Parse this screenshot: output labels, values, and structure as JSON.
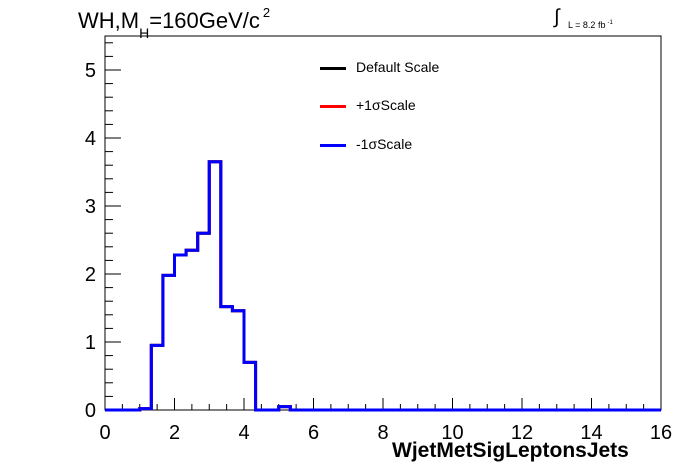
{
  "title": {
    "main": "WH,M",
    "sub": "H",
    "rest": "=160GeV/c",
    "sup": "2"
  },
  "luminosity": {
    "symbol": "∫",
    "text": "L = 8.2 fb",
    "sup": "-1"
  },
  "legend": [
    {
      "label": "Default Scale",
      "color": "#000000"
    },
    {
      "label": "+1σScale",
      "color": "#ff0000"
    },
    {
      "label": "-1σScale",
      "color": "#0000ff"
    }
  ],
  "chart_data": {
    "type": "histogram",
    "xlabel": "WjetMetSigLeptonsJets",
    "ylabel": "",
    "xlim": [
      0,
      16
    ],
    "ylim": [
      0,
      5.5
    ],
    "x_ticks": [
      0,
      2,
      4,
      6,
      8,
      10,
      12,
      14,
      16
    ],
    "y_ticks": [
      0,
      1,
      2,
      3,
      4,
      5
    ],
    "bin_edges": [
      0,
      0.333,
      0.667,
      1.0,
      1.333,
      1.667,
      2.0,
      2.333,
      2.667,
      3.0,
      3.333,
      3.667,
      4.0,
      4.333,
      4.667,
      5.0,
      5.333,
      5.667,
      6.0,
      16.0
    ],
    "series": [
      {
        "name": "Default Scale",
        "color": "#000000",
        "values": [
          0,
          0,
          0,
          0.02,
          0.95,
          1.98,
          2.28,
          2.35,
          2.6,
          3.65,
          1.52,
          1.46,
          0.7,
          0,
          0,
          0.05,
          0,
          0,
          0
        ]
      },
      {
        "name": "+1σScale",
        "color": "#ff0000",
        "values": [
          0,
          0,
          0,
          0.02,
          0.95,
          1.98,
          2.28,
          2.35,
          2.6,
          3.65,
          1.52,
          1.46,
          0.7,
          0,
          0,
          0.05,
          0,
          0,
          0
        ]
      },
      {
        "name": "-1σScale",
        "color": "#0000ff",
        "values": [
          0,
          0,
          0,
          0.02,
          0.95,
          1.98,
          2.28,
          2.35,
          2.6,
          3.65,
          1.52,
          1.46,
          0.7,
          0,
          0,
          0.05,
          0,
          0,
          0
        ]
      }
    ],
    "grid": false,
    "legend_position": "top-center"
  }
}
